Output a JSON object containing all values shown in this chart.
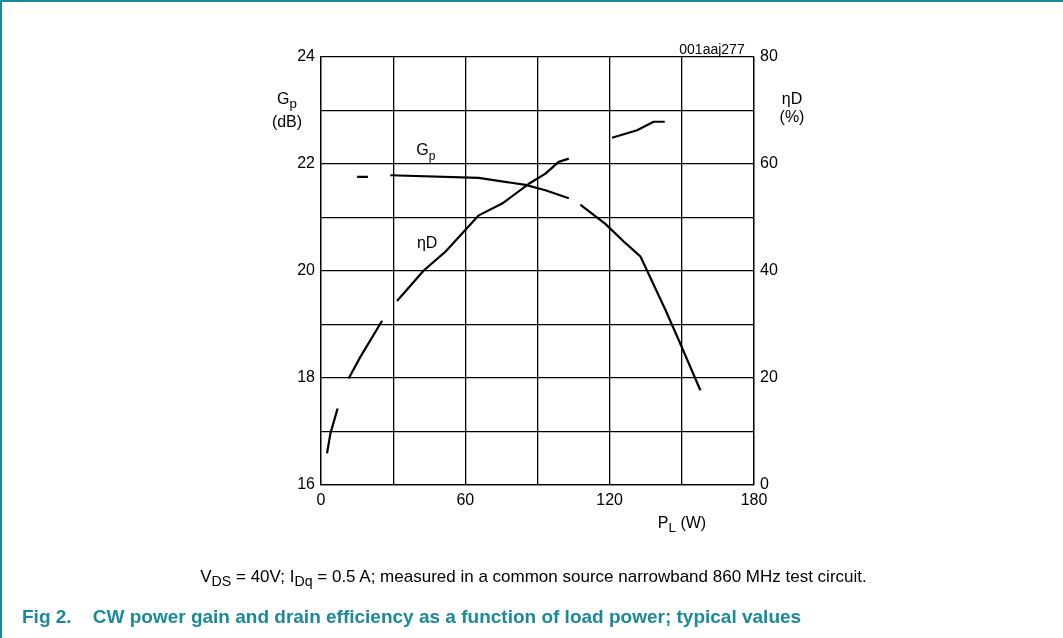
{
  "chart_data": {
    "type": "line",
    "title": "Fig 2.    CW power gain and drain efficiency as a function of load power; typical values",
    "xlabel": "P$_{L}$ (W)",
    "ylabel": "G$_{p}$\n(dB)",
    "y2label": "ηD\n(%)",
    "annotations": [
      "001aaj277",
      "V$_{DS}$ = 40V; I$_{Dq}$ = 0.5 A; measured in a common source narrowband 860 MHz test circuit."
    ],
    "xlim": [
      0,
      180
    ],
    "xticks": [
      0,
      {
        "value": 30,
        "label": null
      },
      60,
      {
        "value": 90,
        "label": null
      },
      120,
      {
        "value": 150,
        "label": null
      },
      180
    ],
    "ylim": [
      16,
      24
    ],
    "yticks": [
      16,
      {
        "value": 17,
        "label": null
      },
      18,
      {
        "value": 19,
        "label": null
      },
      20,
      {
        "value": 21,
        "label": null
      },
      22,
      {
        "value": 23,
        "label": null
      },
      24
    ],
    "y2lim": [
      0,
      80
    ],
    "y2ticks": [
      0,
      20,
      40,
      60,
      80
    ],
    "grid": true,
    "series": [
      {
        "name": "G$_{p}$",
        "color": "#000000",
        "x": [
          15,
          19.5,
          24,
          28.8,
          65.6,
          85,
          93.3,
          103,
          105.4,
          107.8,
          118.2,
          126.6,
          132.8,
          143.2,
          148.7,
          157.7
        ],
        "values": [
          21.76,
          21.76,
          null,
          21.79,
          21.74,
          21.61,
          21.51,
          21.36,
          null,
          21.24,
          20.88,
          20.52,
          20.27,
          19.27,
          18.71,
          17.77
        ]
      },
      {
        "name": "ηD",
        "color": "#000000",
        "axis": "y2",
        "x": [
          2.5,
          3.9,
          6.9,
          9,
          11.5,
          16.3,
          25.4,
          28.5,
          31.6,
          42.7,
          51.7,
          65.6,
          75.3,
          86.4,
          93.3,
          98.8,
          103,
          112,
          121,
          131.4,
          138.3,
          142.9
        ],
        "values": [
          5.9,
          9.6,
          14.3,
          null,
          19.9,
          23.9,
          30.7,
          null,
          34.4,
          40.1,
          43.6,
          50.4,
          52.6,
          56.3,
          58.2,
          60.4,
          61,
          null,
          64.9,
          66.3,
          67.9,
          67.9
        ]
      }
    ]
  }
}
